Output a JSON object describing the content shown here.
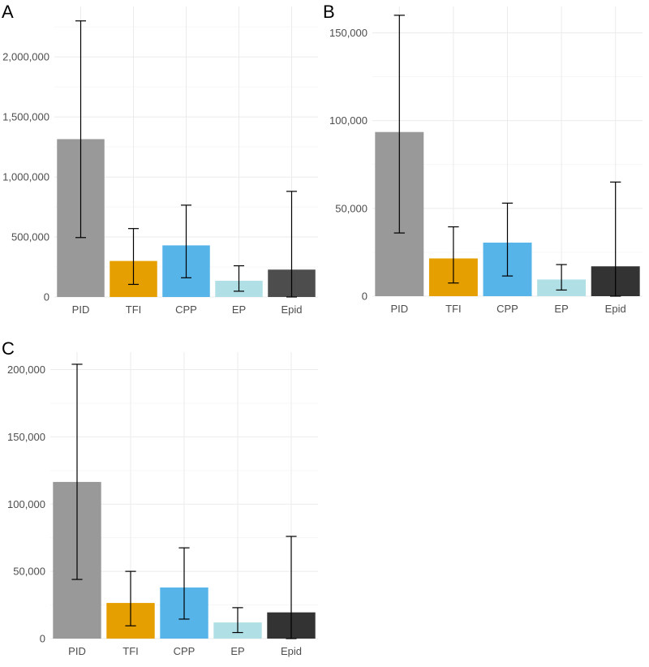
{
  "chart_data": [
    {
      "panel": "A",
      "type": "bar",
      "categories": [
        "PID",
        "TFI",
        "CPP",
        "EP",
        "Epid"
      ],
      "values": [
        1315000,
        300000,
        430000,
        135000,
        228000
      ],
      "error_low": [
        495000,
        105000,
        160000,
        48000,
        0
      ],
      "error_high": [
        2300000,
        570000,
        765000,
        260000,
        880000
      ],
      "yticks": [
        0,
        500000,
        1000000,
        1500000,
        2000000
      ],
      "ytick_labels": [
        "0",
        "500,000",
        "1,000,000",
        "1,500,000",
        "2,000,000"
      ],
      "ylim": [
        0,
        2420000
      ],
      "colors": [
        "#999999",
        "#E69F00",
        "#56B4E9",
        "#B0E0E6",
        "#4D4D4D"
      ],
      "title": "",
      "xlabel": "",
      "ylabel": ""
    },
    {
      "panel": "B",
      "type": "bar",
      "categories": [
        "PID",
        "TFI",
        "CPP",
        "EP",
        "Epid"
      ],
      "values": [
        93500,
        21500,
        30500,
        9500,
        17000
      ],
      "error_low": [
        36000,
        7500,
        11500,
        3500,
        0
      ],
      "error_high": [
        160000,
        39500,
        53000,
        18000,
        65000
      ],
      "yticks": [
        0,
        50000,
        100000,
        150000
      ],
      "ytick_labels": [
        "0",
        "50,000",
        "100,000",
        "150,000"
      ],
      "ylim": [
        0,
        165000
      ],
      "colors": [
        "#999999",
        "#E69F00",
        "#56B4E9",
        "#B0E0E6",
        "#333333"
      ],
      "title": "",
      "xlabel": "",
      "ylabel": ""
    },
    {
      "panel": "C",
      "type": "bar",
      "categories": [
        "PID",
        "TFI",
        "CPP",
        "EP",
        "Epid"
      ],
      "values": [
        116500,
        26500,
        38000,
        12000,
        19500
      ],
      "error_low": [
        44000,
        9500,
        14500,
        4500,
        0
      ],
      "error_high": [
        204000,
        50000,
        67500,
        23000,
        76000
      ],
      "yticks": [
        0,
        50000,
        100000,
        150000,
        200000
      ],
      "ytick_labels": [
        "0",
        "50,000",
        "100,000",
        "150,000",
        "200,000"
      ],
      "ylim": [
        0,
        213000
      ],
      "colors": [
        "#999999",
        "#E69F00",
        "#56B4E9",
        "#B0E0E6",
        "#333333"
      ],
      "title": "",
      "xlabel": "",
      "ylabel": ""
    }
  ]
}
